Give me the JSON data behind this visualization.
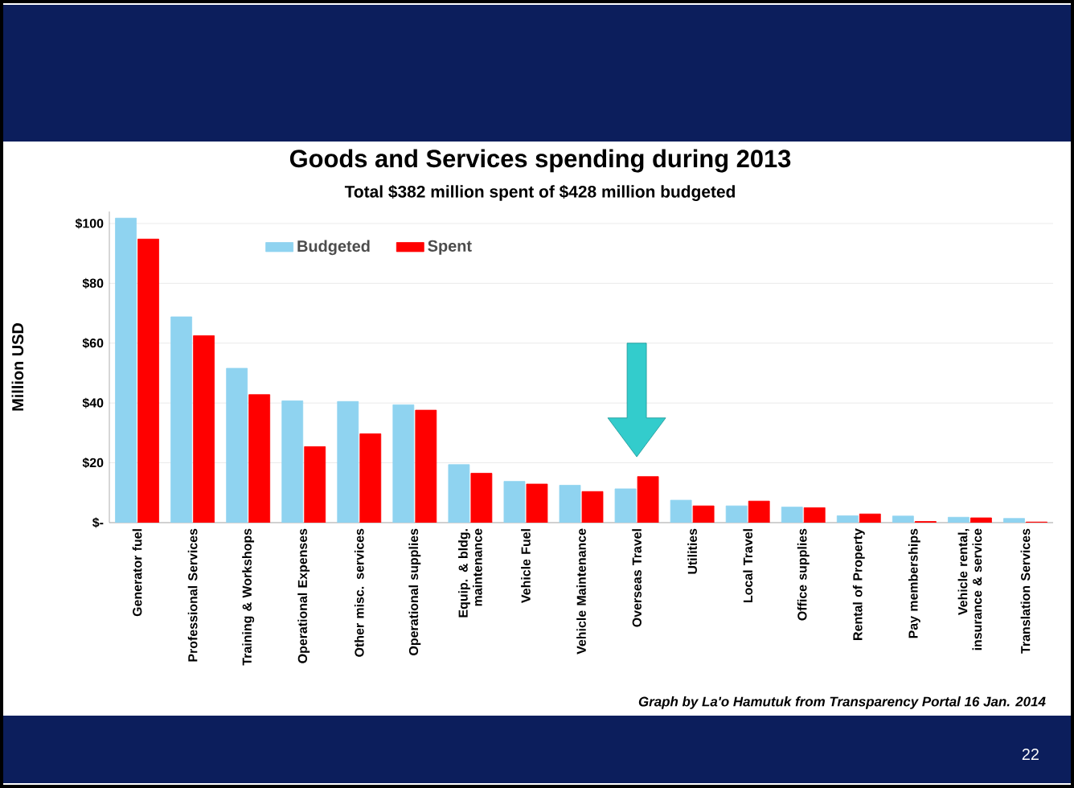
{
  "chart_data": {
    "type": "bar",
    "title": "Goods and Services spending during 2013",
    "subtitle": "Total $382 million spent of $428 million budgeted",
    "ylabel": "Million USD",
    "categories": [
      "Generator fuel",
      "Professional Services",
      "Training & Workshops",
      "Operational Expenses",
      "Other misc. services",
      "Operational supplies",
      "Equip. & bldg. maintenance",
      "Vehicle Fuel",
      "Vehicle Maintenance",
      "Overseas Travel",
      "Utilities",
      "Local Travel",
      "Office supplies",
      "Rental of Property",
      "Pay memberships",
      "Vehicle rental, insurance & service",
      "Translation Services"
    ],
    "series": [
      {
        "name": "Budgeted",
        "color": "#8fd3f0",
        "values": [
          101.8,
          68.8,
          51.6,
          40.7,
          40.5,
          39.4,
          19.4,
          13.8,
          12.5,
          11.3,
          7.5,
          5.6,
          5.2,
          2.3,
          2.2,
          1.8,
          1.4
        ]
      },
      {
        "name": "Spent",
        "color": "#ff0000",
        "values": [
          94.8,
          62.5,
          42.8,
          25.4,
          29.7,
          37.6,
          16.5,
          12.9,
          10.4,
          15.4,
          5.6,
          7.2,
          5.0,
          2.9,
          0.4,
          1.6,
          0.2
        ]
      }
    ],
    "ylim": [
      0,
      104
    ],
    "yticks": [
      {
        "value": 0,
        "label": "$-"
      },
      {
        "value": 20,
        "label": "$20"
      },
      {
        "value": 40,
        "label": "$40"
      },
      {
        "value": 60,
        "label": "$60"
      },
      {
        "value": 80,
        "label": "$80"
      },
      {
        "value": 100,
        "label": "$100"
      }
    ],
    "grid": "y",
    "legend": "top left",
    "annotations": [
      "Graph by La'o Hamutuk from Transparency Portal     16 Jan. 2014",
      "22"
    ]
  }
}
